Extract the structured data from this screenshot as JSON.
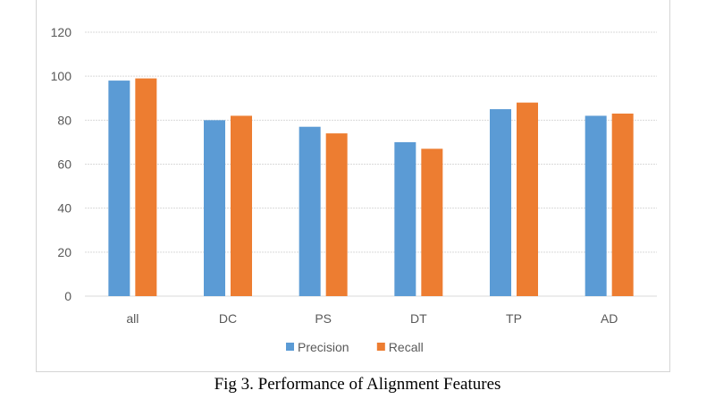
{
  "chart_data": {
    "type": "bar",
    "title": "",
    "categories": [
      "all",
      "DC",
      "PS",
      "DT",
      "TP",
      "AD"
    ],
    "series": [
      {
        "name": "Precision",
        "color": "#5b9bd5",
        "values": [
          98,
          80,
          77,
          70,
          85,
          82
        ]
      },
      {
        "name": "Recall",
        "color": "#ed7d31",
        "values": [
          99,
          82,
          74,
          67,
          88,
          83
        ]
      }
    ],
    "xlabel": "",
    "ylabel": "",
    "ylim": [
      0,
      120
    ],
    "yticks": [
      0,
      20,
      40,
      60,
      80,
      100,
      120
    ],
    "grid": true,
    "legend": "bottom-center"
  },
  "caption": "Fig 3. Performance of Alignment Features"
}
